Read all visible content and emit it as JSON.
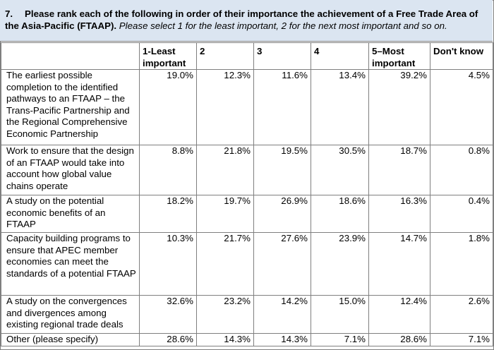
{
  "question": {
    "number": "7.",
    "text": "Please rank each of the following in order of their importance the achievement of a Free Trade Area of the Asia-Pacific (FTAAP).",
    "instruction": " Please select 1 for the least important, 2 for the next most important and so on."
  },
  "table": {
    "columns": [
      "1-Least important",
      "2",
      "3",
      "4",
      "5–Most important",
      "Don't know"
    ],
    "rows": [
      {
        "label": "The earliest possible completion to the identified pathways to an FTAAP – the Trans-Pacific Partnership and the Regional Comprehensive Economic Partnership",
        "values": [
          "19.0%",
          "12.3%",
          "11.6%",
          "13.4%",
          "39.2%",
          "4.5%"
        ]
      },
      {
        "label": "Work to ensure that the design of an FTAAP would take into account how global value chains operate",
        "values": [
          "8.8%",
          "21.8%",
          "19.5%",
          "30.5%",
          "18.7%",
          "0.8%"
        ]
      },
      {
        "label": "A study on the potential economic benefits of an FTAAP",
        "values": [
          "18.2%",
          "19.7%",
          "26.9%",
          "18.6%",
          "16.3%",
          "0.4%"
        ]
      },
      {
        "label": "Capacity building programs to ensure that APEC member economies can meet the standards of a potential FTAAP",
        "values": [
          "10.3%",
          "21.7%",
          "27.6%",
          "23.9%",
          "14.7%",
          "1.8%"
        ]
      },
      {
        "label": "A study on the convergences and divergences among existing regional trade deals",
        "values": [
          "32.6%",
          "23.2%",
          "14.2%",
          "15.0%",
          "12.4%",
          "2.6%"
        ]
      },
      {
        "label": "Other (please specify)",
        "values": [
          "28.6%",
          "14.3%",
          "14.3%",
          "7.1%",
          "28.6%",
          "7.1%"
        ]
      }
    ]
  },
  "colors": {
    "header_bg": "#dbe5f1",
    "border": "#7f7f7f"
  }
}
